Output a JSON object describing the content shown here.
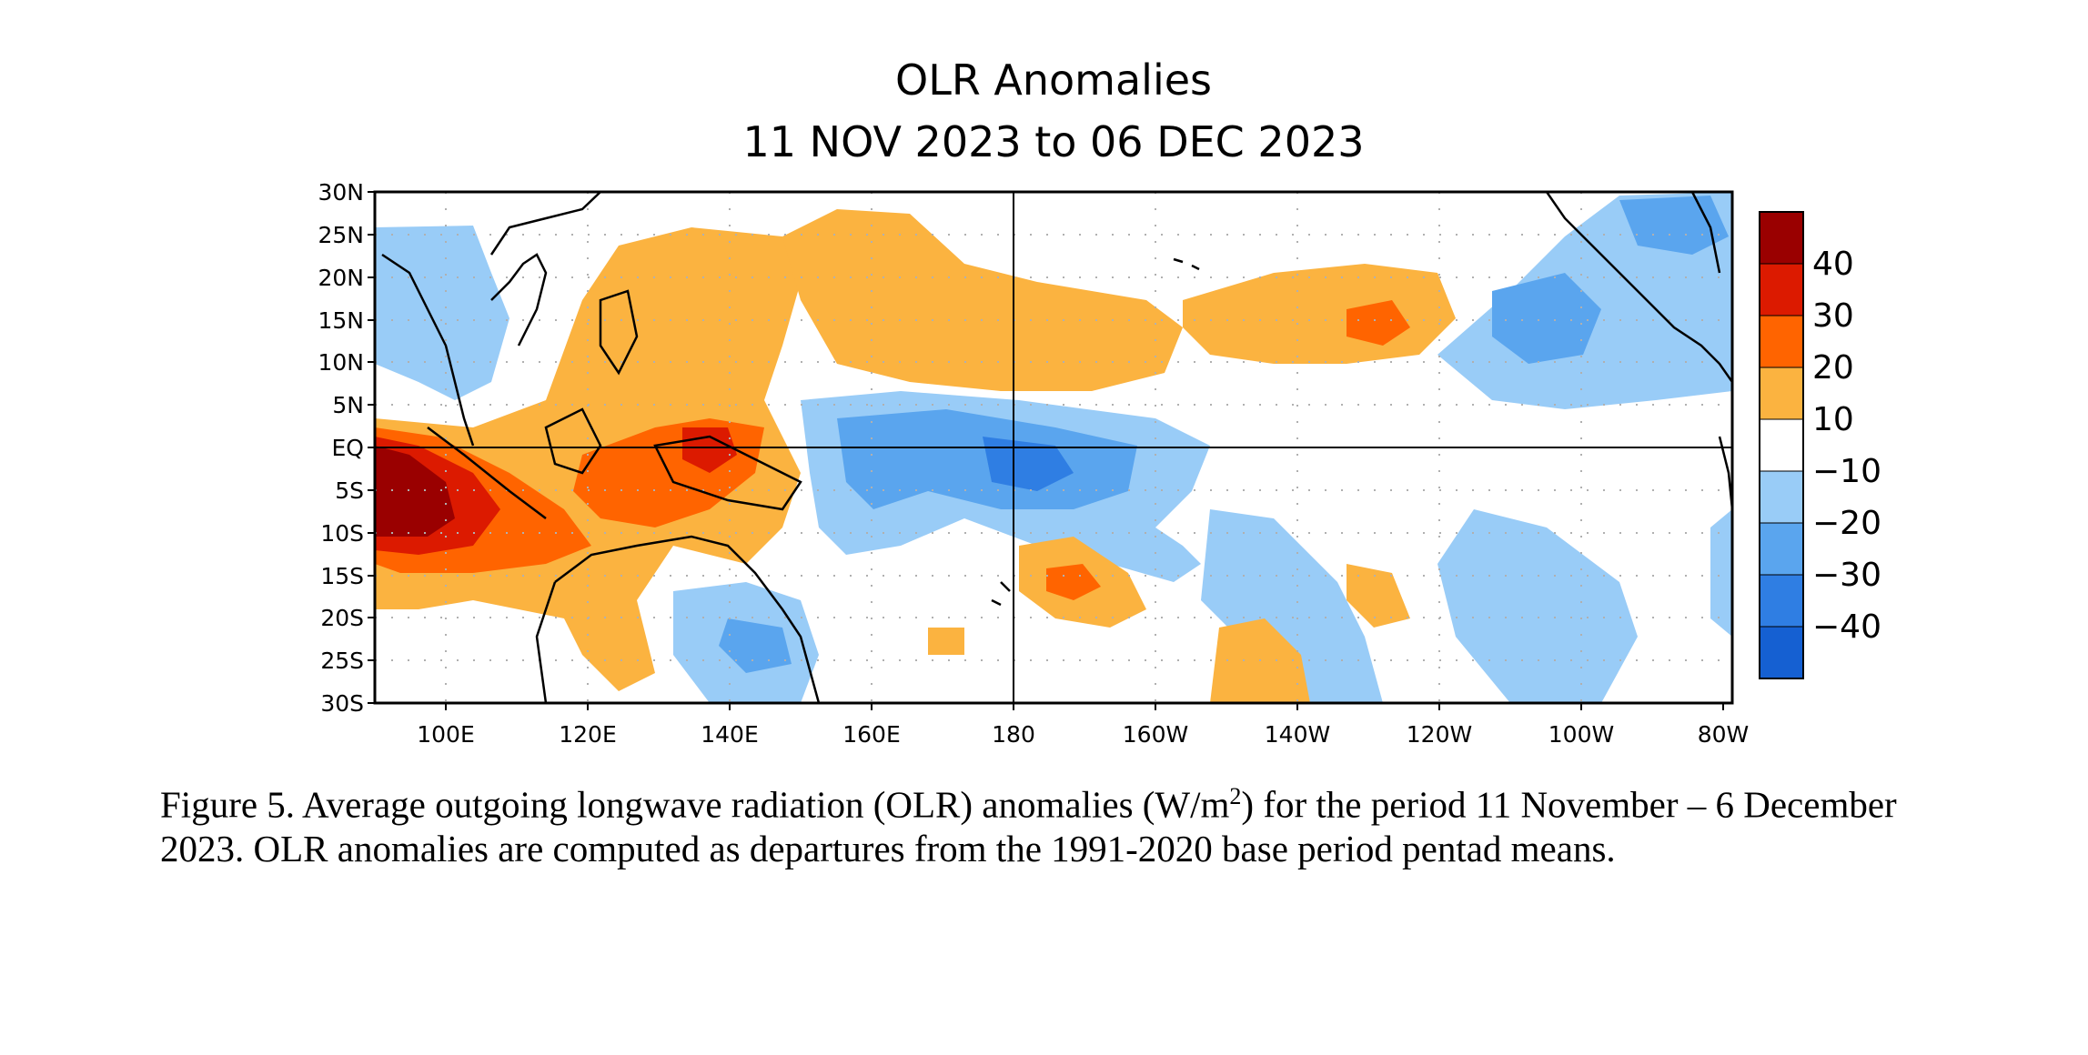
{
  "title": {
    "line1": "OLR Anomalies",
    "line2": "11 NOV 2023 to 06 DEC 2023"
  },
  "axes": {
    "lat_labels": [
      "30N",
      "25N",
      "20N",
      "15N",
      "10N",
      "5N",
      "EQ",
      "5S",
      "10S",
      "15S",
      "20S",
      "25S",
      "30S"
    ],
    "lon_labels": [
      "100E",
      "120E",
      "140E",
      "160E",
      "180",
      "160W",
      "140W",
      "120W",
      "100W",
      "80W"
    ]
  },
  "colorbar": {
    "labels": [
      "40",
      "30",
      "20",
      "10",
      "−10",
      "−20",
      "−30",
      "−40"
    ],
    "colors": [
      "#9a0000",
      "#dc1a00",
      "#ff6400",
      "#fbb340",
      "#ffffff",
      "#99ccf7",
      "#5aa5ee",
      "#2f7ee3",
      "#1560d2"
    ]
  },
  "map_colors": {
    "warm1": "#fbb340",
    "warm2": "#ff6400",
    "warm3": "#dc1a00",
    "warm4": "#9a0000",
    "cool1": "#99ccf7",
    "cool2": "#5aa5ee",
    "cool3": "#2f7ee3",
    "cool4": "#1560d2"
  },
  "caption": {
    "part1": "Figure 5. Average outgoing longwave radiation (OLR) anomalies (W/m",
    "sup": "2",
    "part2": ") for the period 11 November – 6 December 2023.  OLR anomalies are computed as departures from the 1991-2020 base period pentad means."
  }
}
